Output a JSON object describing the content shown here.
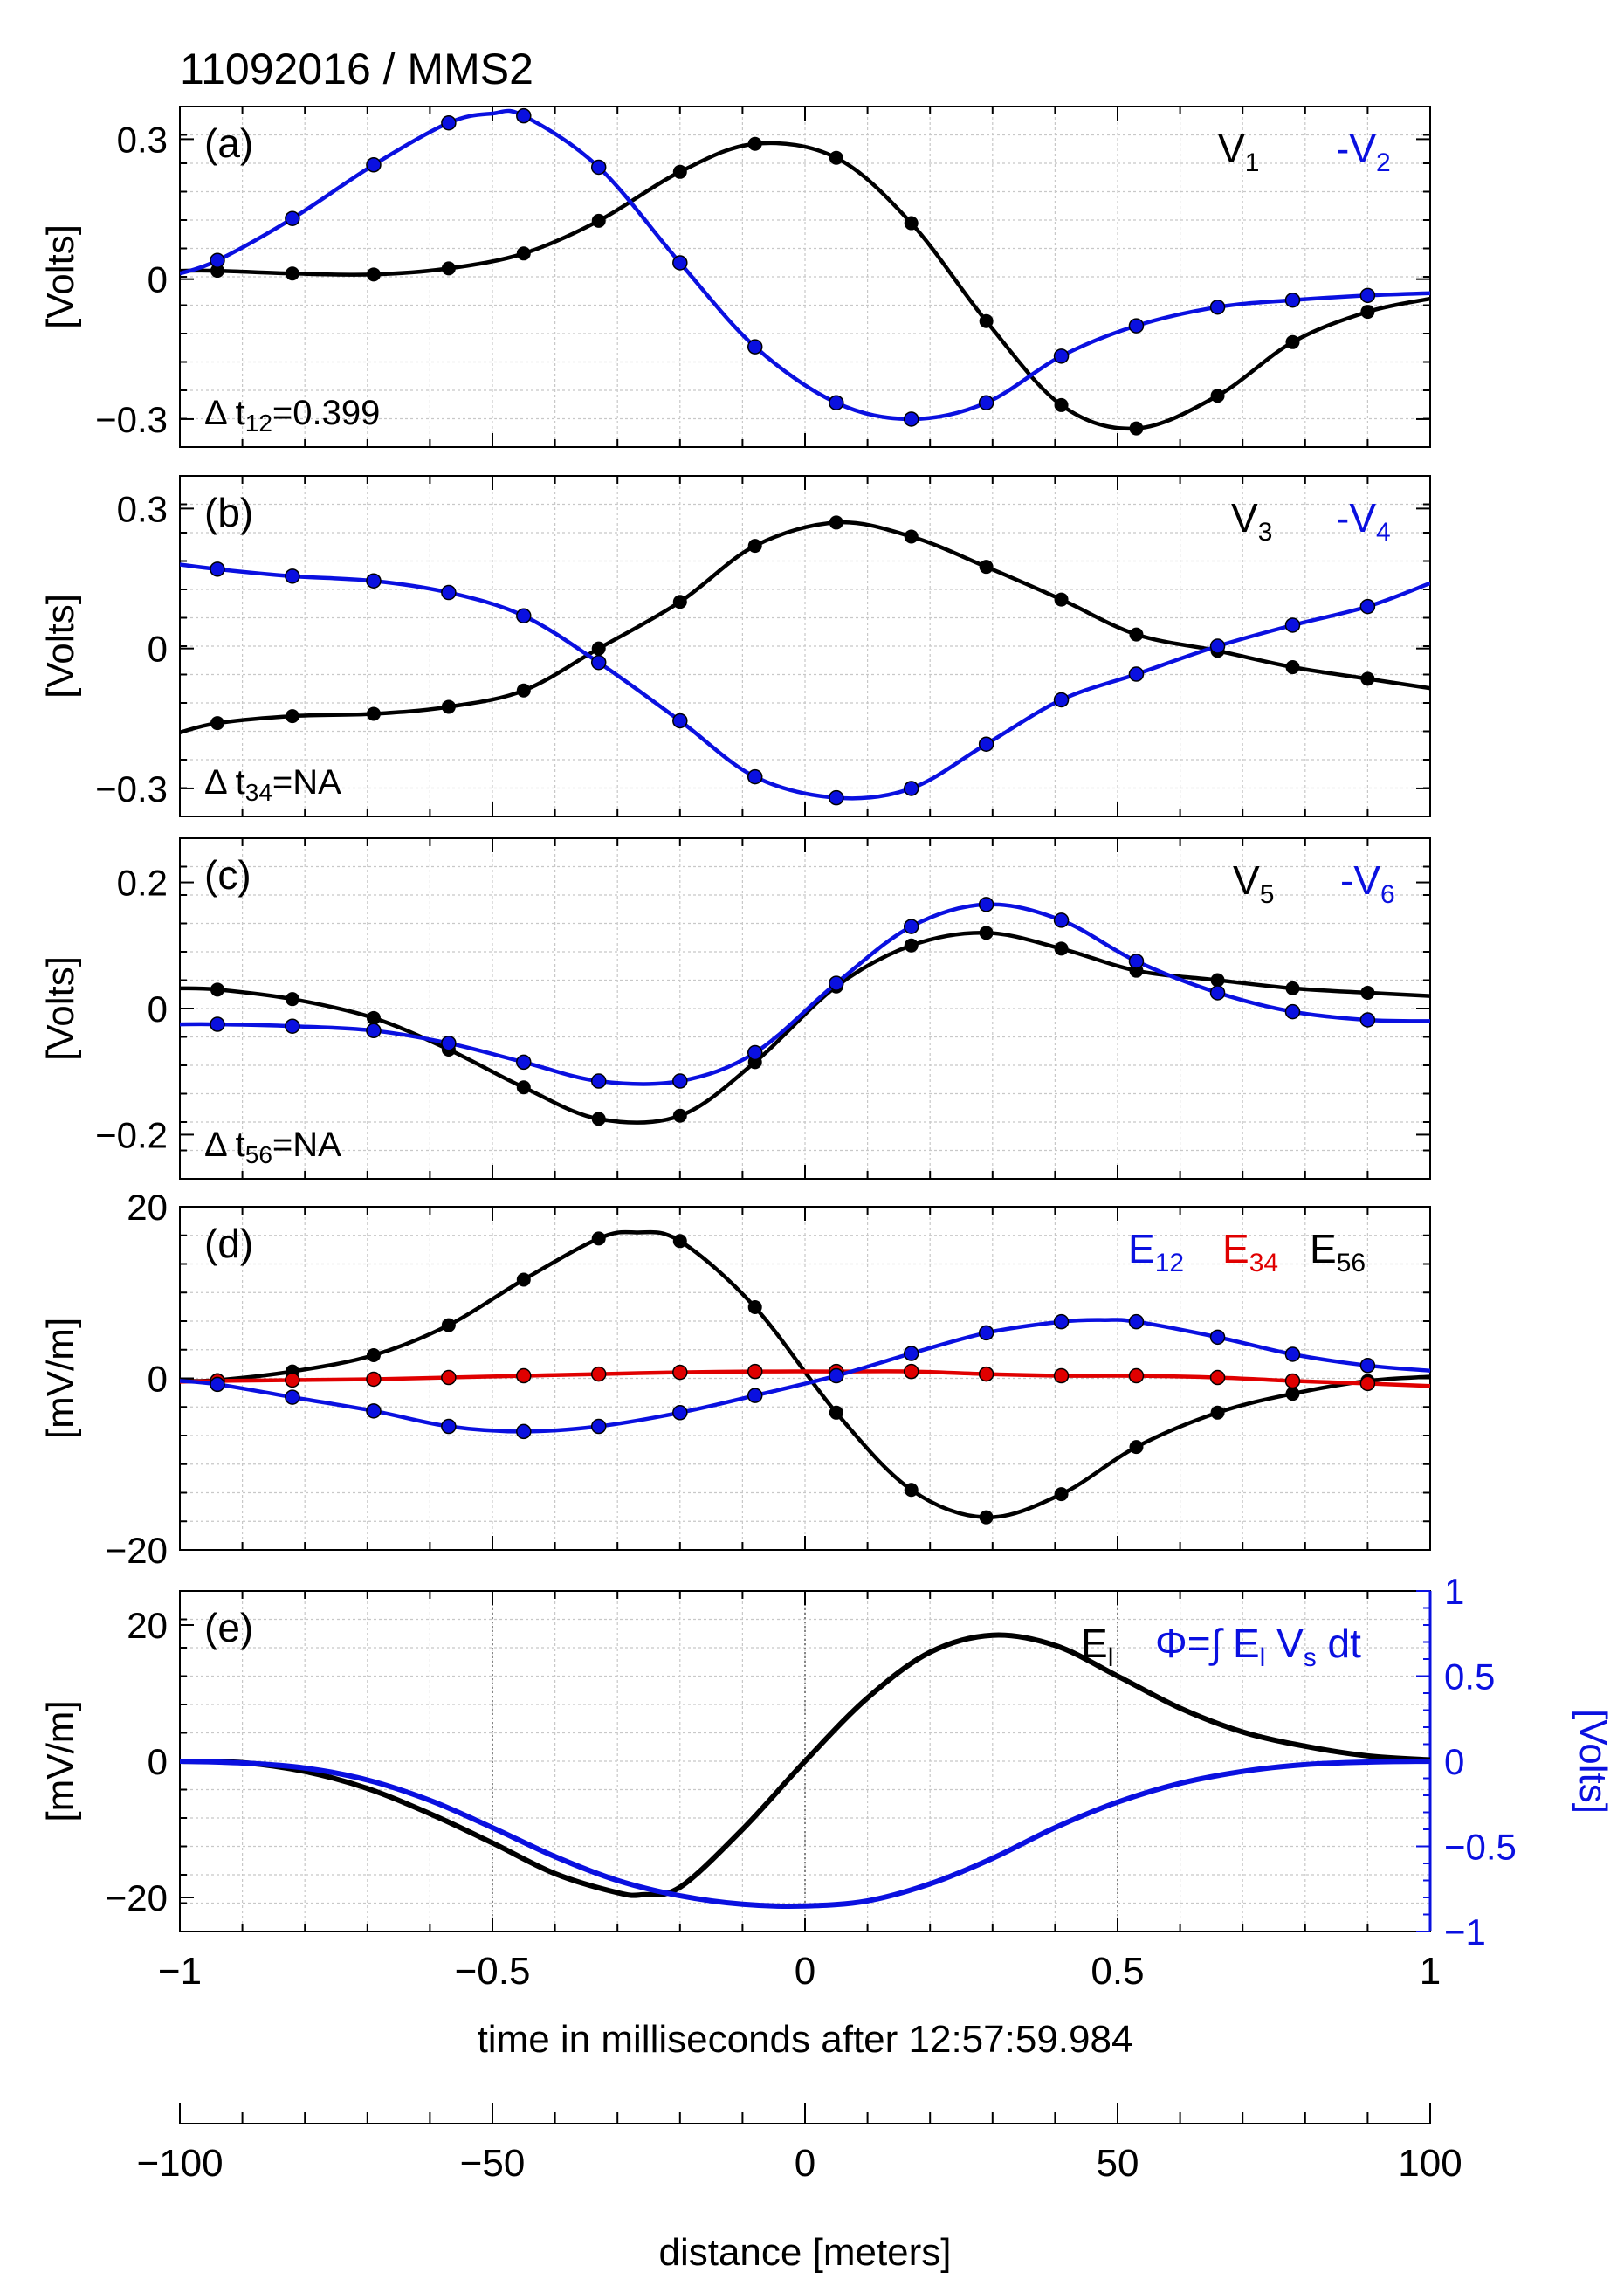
{
  "title": "11092016 / MMS2",
  "x_axis": {
    "label": "time in milliseconds after 12:57:59.984",
    "range": [
      -1,
      1
    ],
    "ticks": [
      "−1",
      "−0.5",
      "0",
      "0.5",
      "1"
    ]
  },
  "distance_axis": {
    "label": "distance [meters]",
    "range": [
      -100,
      100
    ],
    "ticks": [
      "−100",
      "−50",
      "0",
      "50",
      "100"
    ]
  },
  "colors": {
    "black": "#000000",
    "blue": "#0a10e0",
    "red": "#e00000"
  },
  "chart_data": [
    {
      "type": "line",
      "panel": "(a)",
      "ylabel": "[Volts]",
      "ylim": [
        -0.36,
        0.37
      ],
      "yticks": [
        {
          "v": 0.3,
          "t": "0.3"
        },
        {
          "v": 0,
          "t": "0"
        },
        {
          "v": -0.3,
          "t": "−0.3"
        }
      ],
      "annotation": {
        "prefix": "Δ t",
        "sub": "12",
        "suffix": "=0.399"
      },
      "legend": [
        {
          "name": "V",
          "sub": "1",
          "color": "black"
        },
        {
          "name": "-V",
          "sub": "2",
          "color": "blue"
        }
      ],
      "series": [
        {
          "name": "V1",
          "color": "black",
          "markers": true,
          "x": [
            -1,
            -0.94,
            -0.82,
            -0.69,
            -0.57,
            -0.45,
            -0.33,
            -0.2,
            -0.08,
            0.05,
            0.17,
            0.29,
            0.41,
            0.53,
            0.66,
            0.78,
            0.9,
            1
          ],
          "y": [
            0.018,
            0.018,
            0.012,
            0.01,
            0.023,
            0.055,
            0.125,
            0.23,
            0.29,
            0.26,
            0.12,
            -0.09,
            -0.27,
            -0.32,
            -0.25,
            -0.135,
            -0.07,
            -0.042
          ]
        },
        {
          "name": "-V2",
          "color": "blue",
          "markers": true,
          "x": [
            -1,
            -0.94,
            -0.82,
            -0.69,
            -0.57,
            -0.5,
            -0.45,
            -0.33,
            -0.2,
            -0.08,
            0.05,
            0.17,
            0.29,
            0.41,
            0.53,
            0.66,
            0.78,
            0.9,
            1
          ],
          "y": [
            0.012,
            0.04,
            0.13,
            0.245,
            0.335,
            0.355,
            0.35,
            0.24,
            0.035,
            -0.145,
            -0.265,
            -0.3,
            -0.265,
            -0.165,
            -0.1,
            -0.06,
            -0.045,
            -0.035,
            -0.03
          ]
        }
      ]
    },
    {
      "type": "line",
      "panel": "(b)",
      "ylabel": "[Volts]",
      "ylim": [
        -0.36,
        0.37
      ],
      "yticks": [
        {
          "v": 0.3,
          "t": "0.3"
        },
        {
          "v": 0,
          "t": "0"
        },
        {
          "v": -0.3,
          "t": "−0.3"
        }
      ],
      "annotation": {
        "prefix": "Δ t",
        "sub": "34",
        "suffix": "=NA"
      },
      "legend": [
        {
          "name": "V",
          "sub": "3",
          "color": "black"
        },
        {
          "name": "-V",
          "sub": "4",
          "color": "blue"
        }
      ],
      "series": [
        {
          "name": "V3",
          "color": "black",
          "markers": true,
          "x": [
            -1,
            -0.94,
            -0.82,
            -0.69,
            -0.57,
            -0.45,
            -0.33,
            -0.2,
            -0.08,
            0.05,
            0.17,
            0.29,
            0.41,
            0.53,
            0.66,
            0.78,
            0.9,
            1
          ],
          "y": [
            -0.18,
            -0.16,
            -0.145,
            -0.14,
            -0.125,
            -0.09,
            0.0,
            0.1,
            0.22,
            0.27,
            0.24,
            0.175,
            0.105,
            0.03,
            -0.005,
            -0.04,
            -0.065,
            -0.085
          ]
        },
        {
          "name": "-V4",
          "color": "blue",
          "markers": true,
          "x": [
            -1,
            -0.94,
            -0.82,
            -0.69,
            -0.57,
            -0.45,
            -0.33,
            -0.2,
            -0.08,
            0.05,
            0.17,
            0.29,
            0.41,
            0.53,
            0.66,
            0.78,
            0.9,
            1
          ],
          "y": [
            0.18,
            0.17,
            0.155,
            0.145,
            0.12,
            0.07,
            -0.03,
            -0.155,
            -0.275,
            -0.32,
            -0.3,
            -0.205,
            -0.11,
            -0.055,
            0.005,
            0.05,
            0.09,
            0.14
          ]
        }
      ]
    },
    {
      "type": "line",
      "panel": "(c)",
      "ylabel": "[Volts]",
      "ylim": [
        -0.27,
        0.27
      ],
      "yticks": [
        {
          "v": 0.2,
          "t": "0.2"
        },
        {
          "v": 0,
          "t": "0"
        },
        {
          "v": -0.2,
          "t": "−0.2"
        }
      ],
      "annotation": {
        "prefix": "Δ t",
        "sub": "56",
        "suffix": "=NA"
      },
      "legend": [
        {
          "name": "V",
          "sub": "5",
          "color": "black"
        },
        {
          "name": "-V",
          "sub": "6",
          "color": "blue"
        }
      ],
      "series": [
        {
          "name": "V5",
          "color": "black",
          "markers": true,
          "x": [
            -1,
            -0.94,
            -0.82,
            -0.69,
            -0.57,
            -0.45,
            -0.33,
            -0.2,
            -0.08,
            0.05,
            0.17,
            0.29,
            0.41,
            0.53,
            0.66,
            0.78,
            0.9,
            1
          ],
          "y": [
            0.032,
            0.03,
            0.015,
            -0.015,
            -0.065,
            -0.125,
            -0.175,
            -0.17,
            -0.085,
            0.035,
            0.1,
            0.12,
            0.095,
            0.06,
            0.045,
            0.032,
            0.025,
            0.02
          ]
        },
        {
          "name": "-V6",
          "color": "blue",
          "markers": true,
          "x": [
            -1,
            -0.94,
            -0.82,
            -0.69,
            -0.57,
            -0.45,
            -0.33,
            -0.2,
            -0.08,
            0.05,
            0.17,
            0.29,
            0.41,
            0.53,
            0.66,
            0.78,
            0.9,
            1
          ],
          "y": [
            -0.025,
            -0.025,
            -0.028,
            -0.035,
            -0.055,
            -0.085,
            -0.115,
            -0.115,
            -0.07,
            0.04,
            0.13,
            0.165,
            0.14,
            0.075,
            0.025,
            -0.005,
            -0.018,
            -0.02
          ]
        }
      ]
    },
    {
      "type": "line",
      "panel": "(d)",
      "ylabel": "[mV/m]",
      "ylim": [
        -20,
        20
      ],
      "yticks": [
        {
          "v": 20,
          "t": "20"
        },
        {
          "v": 0,
          "t": "0"
        },
        {
          "v": -20,
          "t": "−20"
        }
      ],
      "legend": [
        {
          "name": "E",
          "sub": "12",
          "color": "blue"
        },
        {
          "name": "E",
          "sub": "34",
          "color": "red"
        },
        {
          "name": "E",
          "sub": "56",
          "color": "black"
        }
      ],
      "series": [
        {
          "name": "E56",
          "color": "black",
          "markers": true,
          "x": [
            -1,
            -0.94,
            -0.82,
            -0.69,
            -0.57,
            -0.45,
            -0.33,
            -0.27,
            -0.2,
            -0.08,
            0.05,
            0.17,
            0.29,
            0.41,
            0.53,
            0.66,
            0.78,
            0.9,
            1
          ],
          "y": [
            -0.3,
            -0.2,
            0.8,
            2.7,
            6.2,
            11.5,
            16.3,
            17.0,
            16.0,
            8.3,
            -4.0,
            -13.0,
            -16.2,
            -13.5,
            -8.0,
            -4.0,
            -1.8,
            -0.3,
            0.2
          ]
        },
        {
          "name": "E34",
          "color": "red",
          "markers": true,
          "x": [
            -1,
            -0.94,
            -0.82,
            -0.69,
            -0.57,
            -0.45,
            -0.33,
            -0.2,
            -0.08,
            0.05,
            0.17,
            0.29,
            0.41,
            0.53,
            0.66,
            0.78,
            0.9,
            1
          ],
          "y": [
            -0.4,
            -0.3,
            -0.2,
            -0.1,
            0.1,
            0.3,
            0.5,
            0.7,
            0.8,
            0.8,
            0.8,
            0.5,
            0.3,
            0.3,
            0.1,
            -0.3,
            -0.6,
            -0.9
          ]
        },
        {
          "name": "E12",
          "color": "blue",
          "markers": true,
          "x": [
            -1,
            -0.94,
            -0.82,
            -0.69,
            -0.57,
            -0.45,
            -0.33,
            -0.2,
            -0.08,
            0.05,
            0.17,
            0.29,
            0.41,
            0.48,
            0.53,
            0.66,
            0.78,
            0.9,
            1
          ],
          "y": [
            -0.3,
            -0.7,
            -2.2,
            -3.8,
            -5.6,
            -6.2,
            -5.6,
            -4.0,
            -2.0,
            0.3,
            2.9,
            5.3,
            6.6,
            6.8,
            6.6,
            4.8,
            2.8,
            1.5,
            0.9
          ]
        }
      ]
    },
    {
      "type": "line",
      "panel": "(e)",
      "ylabel": "[mV/m]",
      "ylabel_right": "[Volts]",
      "ylim": [
        -25,
        25
      ],
      "ylim_right": [
        -1,
        1
      ],
      "yticks": [
        {
          "v": 20,
          "t": "20"
        },
        {
          "v": 0,
          "t": "0"
        },
        {
          "v": -20,
          "t": "−20"
        }
      ],
      "yticks_right": [
        {
          "v": 1,
          "t": "1"
        },
        {
          "v": 0.5,
          "t": "0.5"
        },
        {
          "v": 0,
          "t": "0"
        },
        {
          "v": -0.5,
          "t": "−0.5"
        },
        {
          "v": -1,
          "t": "−1"
        }
      ],
      "legend": [
        {
          "name": "E",
          "sub": "l",
          "color": "black"
        },
        {
          "name": "Φ=∫ E",
          "sub": "l",
          "name2": " V",
          "sub2": "s",
          "tail": " dt",
          "color": "blue"
        }
      ],
      "series": [
        {
          "name": "El",
          "color": "black",
          "markers": false,
          "axis": "left",
          "x": [
            -1,
            -0.9,
            -0.8,
            -0.7,
            -0.6,
            -0.5,
            -0.4,
            -0.3,
            -0.26,
            -0.2,
            -0.1,
            0.0,
            0.1,
            0.2,
            0.3,
            0.4,
            0.5,
            0.6,
            0.7,
            0.8,
            0.9,
            1.0
          ],
          "y": [
            0.0,
            -0.2,
            -1.5,
            -4.0,
            -7.7,
            -12.0,
            -16.5,
            -19.3,
            -19.6,
            -18.5,
            -10.0,
            0.0,
            9.3,
            16.0,
            18.5,
            17.0,
            12.5,
            7.8,
            4.3,
            2.2,
            0.8,
            0.2
          ]
        },
        {
          "name": "Phi",
          "color": "blue",
          "markers": false,
          "axis": "right",
          "x": [
            -1,
            -0.9,
            -0.8,
            -0.7,
            -0.6,
            -0.5,
            -0.4,
            -0.3,
            -0.2,
            -0.1,
            0.0,
            0.1,
            0.2,
            0.3,
            0.4,
            0.5,
            0.6,
            0.7,
            0.8,
            0.9,
            1.0
          ],
          "y": [
            0.0,
            -0.01,
            -0.04,
            -0.11,
            -0.23,
            -0.39,
            -0.56,
            -0.7,
            -0.79,
            -0.84,
            -0.85,
            -0.82,
            -0.72,
            -0.57,
            -0.39,
            -0.24,
            -0.13,
            -0.06,
            -0.02,
            -0.005,
            0.0
          ]
        }
      ]
    }
  ]
}
